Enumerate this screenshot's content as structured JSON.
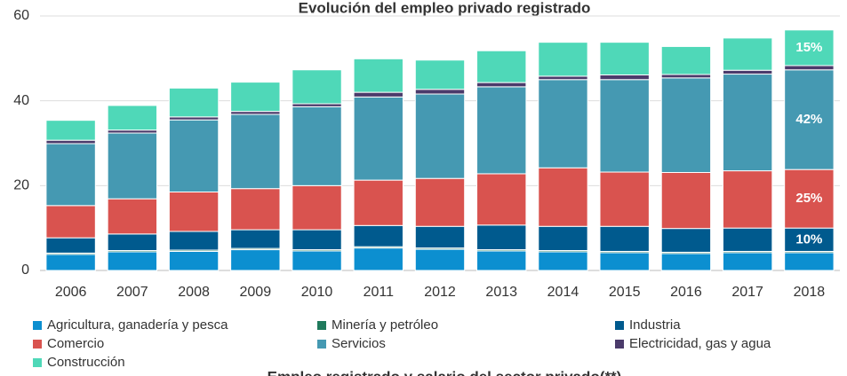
{
  "chart_data": {
    "type": "stacked_bar",
    "title": "Evolución del empleo privado registrado",
    "footer": "Empleo registrado y salario del sector privado(**)",
    "categories": [
      "2006",
      "2007",
      "2008",
      "2009",
      "2010",
      "2011",
      "2012",
      "2013",
      "2014",
      "2015",
      "2016",
      "2017",
      "2018"
    ],
    "series": [
      {
        "name": "Agricultura, ganadería y pesca",
        "color": "#0c8fd0",
        "values": [
          3.8,
          4.4,
          4.5,
          4.9,
          4.6,
          5.3,
          5.0,
          4.6,
          4.4,
          4.2,
          4.0,
          4.2,
          4.2
        ]
      },
      {
        "name": "Minería y petróleo",
        "color": "#1f7a5c",
        "values": [
          0.3,
          0.3,
          0.3,
          0.3,
          0.3,
          0.3,
          0.3,
          0.3,
          0.3,
          0.3,
          0.3,
          0.3,
          0.3
        ]
      },
      {
        "name": "Industria",
        "color": "#005a8e",
        "values": [
          3.6,
          3.9,
          4.4,
          4.4,
          4.7,
          5.0,
          5.1,
          5.8,
          5.7,
          5.9,
          5.6,
          5.5,
          5.5
        ],
        "label": "10%"
      },
      {
        "name": "Comercio",
        "color": "#d9534f",
        "values": [
          7.6,
          8.3,
          9.3,
          9.7,
          10.4,
          10.7,
          11.3,
          12.1,
          13.8,
          12.8,
          13.2,
          13.5,
          13.8
        ],
        "label": "25%"
      },
      {
        "name": "Servicios",
        "color": "#4599b2",
        "values": [
          14.6,
          15.5,
          17.0,
          17.5,
          18.6,
          19.6,
          19.9,
          20.5,
          20.8,
          21.8,
          22.3,
          22.8,
          23.5
        ],
        "label": "42%"
      },
      {
        "name": "Electricidad, gas y agua",
        "color": "#4b3b6b",
        "values": [
          0.8,
          0.7,
          0.7,
          0.7,
          0.7,
          1.1,
          1.1,
          1.0,
          0.8,
          1.1,
          0.8,
          0.9,
          1.0
        ]
      },
      {
        "name": "Construcción",
        "color": "#4fd8b8",
        "values": [
          4.7,
          5.8,
          6.8,
          6.9,
          8.0,
          7.9,
          6.9,
          7.5,
          8.0,
          7.7,
          6.6,
          7.6,
          8.4
        ],
        "label": "15%"
      }
    ],
    "ylim": [
      0,
      60
    ],
    "yticks": [
      0,
      20,
      40,
      60
    ],
    "grid": true
  }
}
